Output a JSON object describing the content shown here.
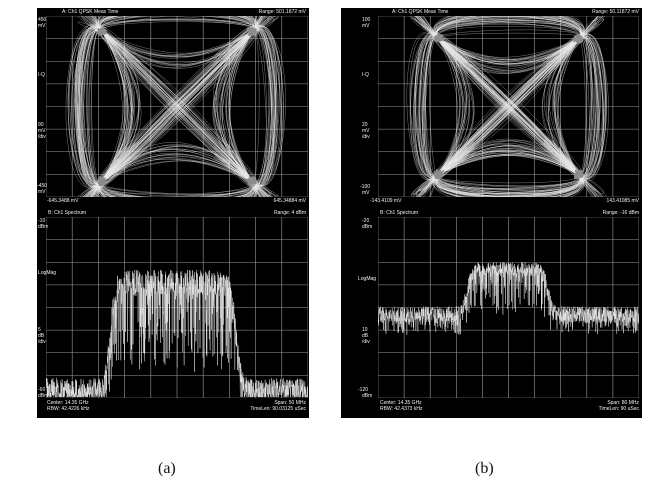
{
  "panels": [
    {
      "id": "a",
      "constellation": {
        "header": "A: Ch1 QPSK Meas Time",
        "range": "Range: 501.1872 mV",
        "y_top": "450",
        "y_top_unit": "mV",
        "y_mid": "I-Q",
        "y_div": "90",
        "y_div_unit1": "mV",
        "y_div_unit2": "/div",
        "y_bot": "-450",
        "y_bot_unit": "mV",
        "x_left": "-645.3488 mV",
        "x_right": "645.34884 mV"
      },
      "spectrum": {
        "header": "B: Ch1 Spectrum",
        "range": "Range: 4 dBm",
        "y_top": "-10",
        "y_top_unit": "dBm",
        "y_mid": "LogMag",
        "y_div": "5",
        "y_div_unit1": "dB",
        "y_div_unit2": "/div",
        "y_bot": "-60",
        "y_bot_unit": "dBm",
        "center": "Center: 14.35 GHz",
        "rbw": "RBW: 42.4226 kHz",
        "span": "Span: 50 MHz",
        "timelen": "TimeLen: 90.03125 uSec"
      },
      "caption": "(a)"
    },
    {
      "id": "b",
      "constellation": {
        "header": "A: Ch1 QPSK Meas Time",
        "range": "Range: 50.11872 mV",
        "y_top": "100",
        "y_top_unit": "mV",
        "y_mid": "I-Q",
        "y_div": "20",
        "y_div_unit1": "mV",
        "y_div_unit2": "/div",
        "y_bot": "-100",
        "y_bot_unit": "mV",
        "x_left": "-143.4109 mV",
        "x_right": "143.41085 mV"
      },
      "spectrum": {
        "header": "B: Ch1 Spectrum",
        "range": "Range: -16 dBm",
        "y_top": "-20",
        "y_top_unit": "dBm",
        "y_mid": "LogMag",
        "y_div": "10",
        "y_div_unit1": "dB",
        "y_div_unit2": "/div",
        "y_bot": "-120",
        "y_bot_unit": "dBm",
        "center": "Center: 14.35 GHz",
        "rbw": "RBW: 42.4373 kHz",
        "span": "Span: 80 MHz",
        "timelen": "TimeLen: 90 uSec"
      },
      "caption": "(b)"
    }
  ],
  "colors": {
    "background": "#000000",
    "grid": "#9a9a9a",
    "trace": "#e8e8e8",
    "cluster": "#8c8c8c"
  }
}
